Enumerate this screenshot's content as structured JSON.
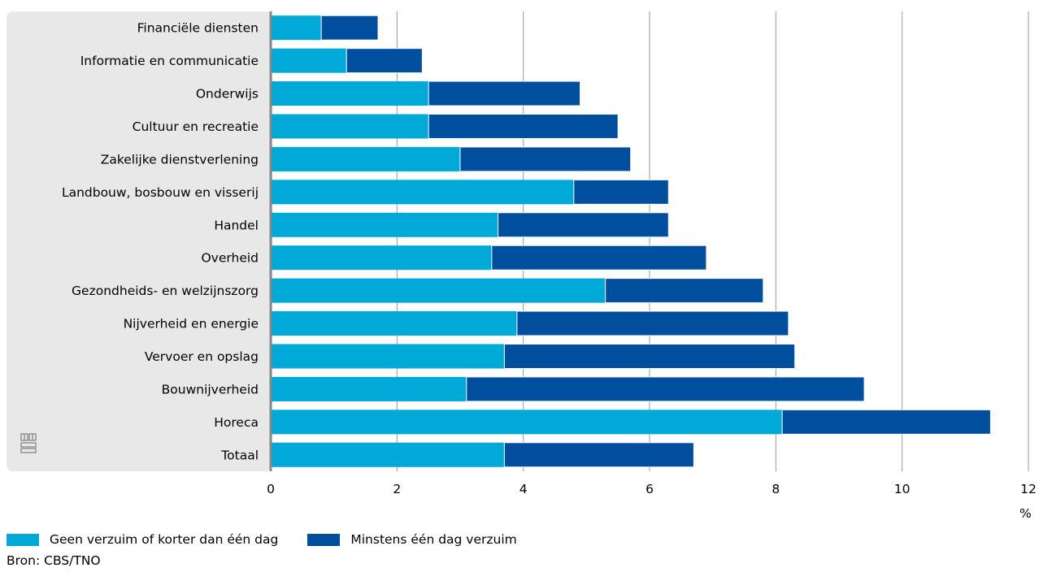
{
  "chart_data": {
    "type": "bar",
    "orientation": "horizontal",
    "stacked": true,
    "categories": [
      "Financiële diensten",
      "Informatie en communicatie",
      "Onderwijs",
      "Cultuur en recreatie",
      "Zakelijke dienstverlening",
      "Landbouw, bosbouw en visserij",
      "Handel",
      "Overheid",
      "Gezondheids- en welzijnszorg",
      "Nijverheid en energie",
      "Vervoer en opslag",
      "Bouwnijverheid",
      "Horeca",
      "Totaal"
    ],
    "series": [
      {
        "name": "Geen verzuim of korter dan één dag",
        "color": "#00a9d8",
        "values": [
          0.8,
          1.2,
          2.5,
          2.5,
          3.0,
          4.8,
          3.6,
          3.5,
          5.3,
          3.9,
          3.7,
          3.1,
          8.1,
          3.7
        ]
      },
      {
        "name": "Minstens één dag verzuim",
        "color": "#004f9e",
        "values": [
          0.9,
          1.2,
          2.4,
          3.0,
          2.7,
          1.5,
          2.7,
          3.4,
          2.5,
          4.3,
          4.6,
          6.3,
          3.3,
          3.0
        ]
      }
    ],
    "xlim": [
      0,
      12
    ],
    "xticks": [
      0,
      2,
      4,
      6,
      8,
      10,
      12
    ],
    "xlabel": "%",
    "grid": true,
    "legend": "bottom-left"
  },
  "legend": {
    "items": [
      {
        "label": "Geen verzuim of korter dan één dag",
        "color": "#00a9d8"
      },
      {
        "label": "Minstens één dag verzuim",
        "color": "#004f9e"
      }
    ]
  },
  "axis_unit": "%",
  "source": "Bron: CBS/TNO",
  "colors": {
    "label_panel": "#e8e8e8",
    "axis_line": "#888888",
    "gridline": "#999999",
    "logo": "#8c8c8c"
  },
  "logo_icon": "cbs-logo-icon"
}
